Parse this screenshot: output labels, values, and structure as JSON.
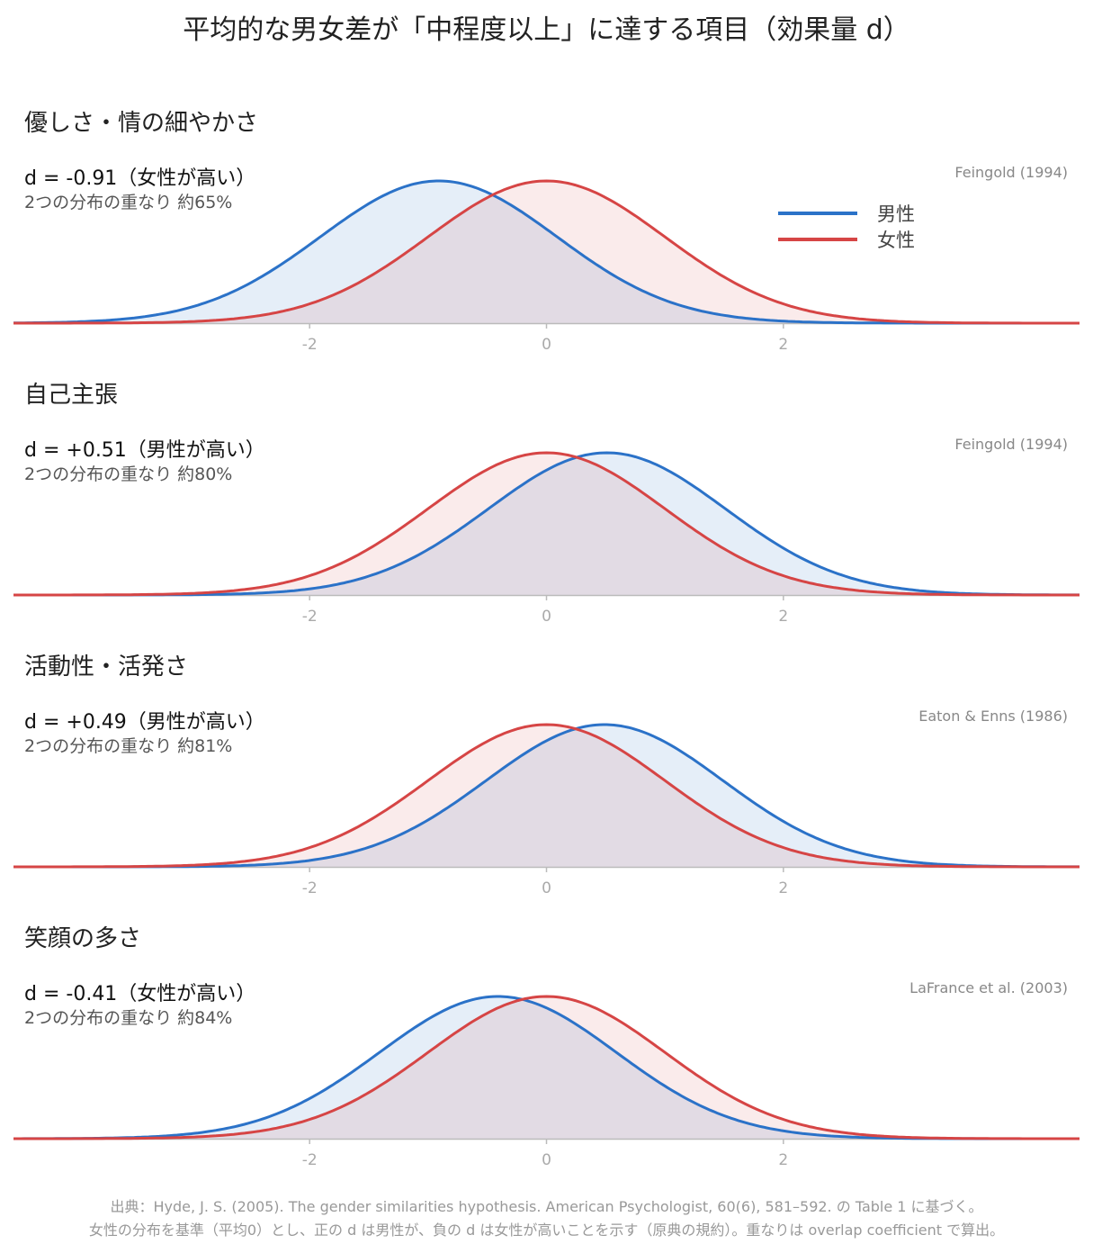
{
  "title": "平均的な男女差が「中程度以上」に達する項目（効果量 d）",
  "legend": {
    "male_label": "男性",
    "female_label": "女性",
    "male_color": "#2b72c8",
    "female_color": "#d64545"
  },
  "panels": [
    {
      "title": "優しさ・情の細やかさ",
      "d_text": "d = -0.91（女性が高い）",
      "overlap_text": "2つの分布の重なり 約65%",
      "source": "Feingold (1994)"
    },
    {
      "title": "自己主張",
      "d_text": "d = +0.51（男性が高い）",
      "overlap_text": "2つの分布の重なり 約80%",
      "source": "Feingold (1994)"
    },
    {
      "title": "活動性・活発さ",
      "d_text": "d = +0.49（男性が高い）",
      "overlap_text": "2つの分布の重なり 約81%",
      "source": "Eaton & Enns (1986)"
    },
    {
      "title": "笑顔の多さ",
      "d_text": "d = -0.41（女性が高い）",
      "overlap_text": "2つの分布の重なり 約84%",
      "source": "LaFrance et al. (2003)"
    }
  ],
  "chart_data": [
    {
      "type": "area",
      "series": [
        {
          "name": "男性",
          "mean": -0.91,
          "sd": 1
        },
        {
          "name": "女性",
          "mean": 0,
          "sd": 1
        }
      ],
      "x_ticks": [
        -2,
        0,
        2
      ],
      "xlim": [
        -4.5,
        4.5
      ]
    },
    {
      "type": "area",
      "series": [
        {
          "name": "男性",
          "mean": 0.51,
          "sd": 1
        },
        {
          "name": "女性",
          "mean": 0,
          "sd": 1
        }
      ],
      "x_ticks": [
        -2,
        0,
        2
      ],
      "xlim": [
        -4.5,
        4.5
      ]
    },
    {
      "type": "area",
      "series": [
        {
          "name": "男性",
          "mean": 0.49,
          "sd": 1
        },
        {
          "name": "女性",
          "mean": 0,
          "sd": 1
        }
      ],
      "x_ticks": [
        -2,
        0,
        2
      ],
      "xlim": [
        -4.5,
        4.5
      ]
    },
    {
      "type": "area",
      "series": [
        {
          "name": "男性",
          "mean": -0.41,
          "sd": 1
        },
        {
          "name": "女性",
          "mean": 0,
          "sd": 1
        }
      ],
      "x_ticks": [
        -2,
        0,
        2
      ],
      "xlim": [
        -4.5,
        4.5
      ]
    }
  ],
  "footer": {
    "line1": "出典：Hyde, J. S. (2005). The gender similarities hypothesis. American Psychologist, 60(6), 581–592. の Table 1 に基づく。",
    "line2": "女性の分布を基準（平均0）とし、正の d は男性が、負の d は女性が高いことを示す（原典の規約）。重なりは overlap coefficient で算出。"
  }
}
